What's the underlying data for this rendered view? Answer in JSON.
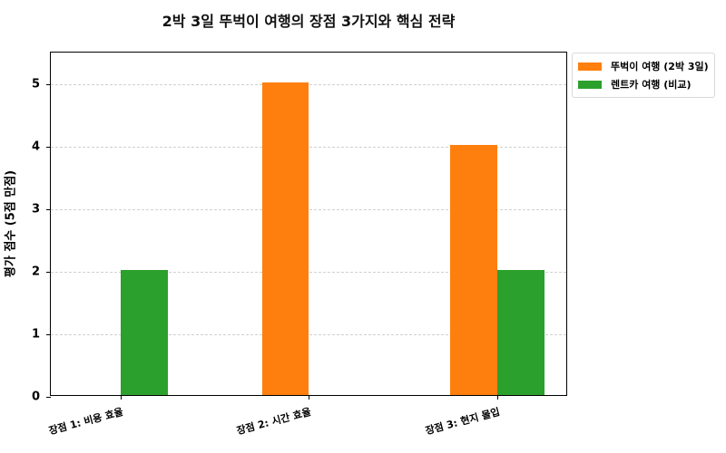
{
  "chart_data": {
    "type": "bar",
    "title": "2박 3일 뚜벅이 여행의 장점 3가지와 핵심 전략",
    "xlabel": "",
    "ylabel": "평가 점수 (5점 만점)",
    "categories": [
      "장점 1: 비용 효율",
      "장점 2: 시간 효율",
      "장점 3: 현지 몰입"
    ],
    "series": [
      {
        "name": "뚜벅이 여행 (2박 3일)",
        "color": "#ff7f0e",
        "values": [
          0,
          5,
          4
        ]
      },
      {
        "name": "렌트카 여행 (비교)",
        "color": "#2ca02c",
        "values": [
          2,
          0,
          2
        ]
      }
    ],
    "ylim": [
      0,
      5.5
    ],
    "yticks": [
      0,
      1,
      2,
      3,
      4,
      5
    ],
    "grid": {
      "y": true,
      "style": "dashed"
    },
    "legend_position": "outside upper right"
  }
}
